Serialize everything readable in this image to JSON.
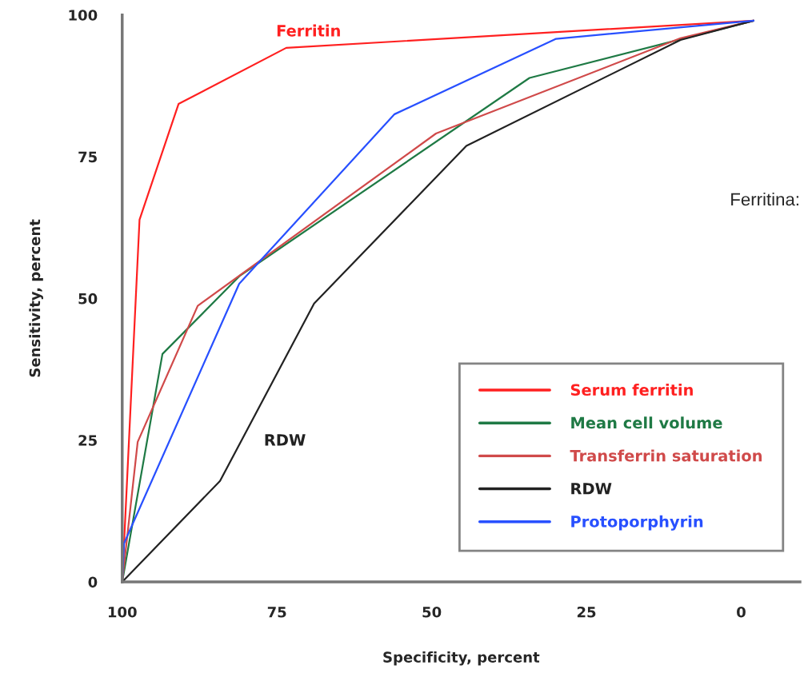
{
  "chart_data": {
    "type": "line",
    "xlabel": "Specificity, percent",
    "ylabel": "Sensitivity, percent",
    "xlim": [
      100,
      -9.5
    ],
    "ylim": [
      0,
      100
    ],
    "xticks": [
      100,
      75,
      50,
      25,
      0
    ],
    "yticks": [
      0,
      25,
      50,
      75,
      100
    ],
    "grid": false,
    "legend": "bottom right",
    "marker": "none",
    "line_style": "solid",
    "series": [
      {
        "name": "Serum ferritin",
        "color": "#ff2020",
        "x": [
          100,
          97.2,
          90.9,
          73.5,
          -2
        ],
        "values": [
          0,
          63.9,
          84.3,
          94.2,
          99
        ]
      },
      {
        "name": "Mean cell volume",
        "color": "#1f7a45",
        "x": [
          100,
          93.5,
          81.0,
          34.2,
          -2
        ],
        "values": [
          0,
          40.2,
          54.0,
          88.9,
          99
        ]
      },
      {
        "name": "Transferrin saturation",
        "color": "#d04a4a",
        "x": [
          100,
          97.5,
          87.8,
          49.3,
          9.8,
          -2
        ],
        "values": [
          0,
          24.7,
          48.7,
          79.1,
          95.9,
          99
        ]
      },
      {
        "name": "RDW",
        "color": "#222222",
        "x": [
          100,
          84.2,
          69.0,
          44.4,
          9.8,
          -2
        ],
        "values": [
          0,
          17.8,
          49.1,
          76.9,
          95.6,
          99
        ]
      },
      {
        "name": "Protoporphyrin",
        "color": "#2850ff",
        "x": [
          100,
          99.7,
          81.1,
          56.0,
          29.9,
          -2
        ],
        "values": [
          0,
          6.8,
          52.6,
          82.5,
          95.8,
          99
        ]
      }
    ],
    "annotations": [
      "Ferritin",
      "RDW",
      "Ferritina:"
    ]
  }
}
